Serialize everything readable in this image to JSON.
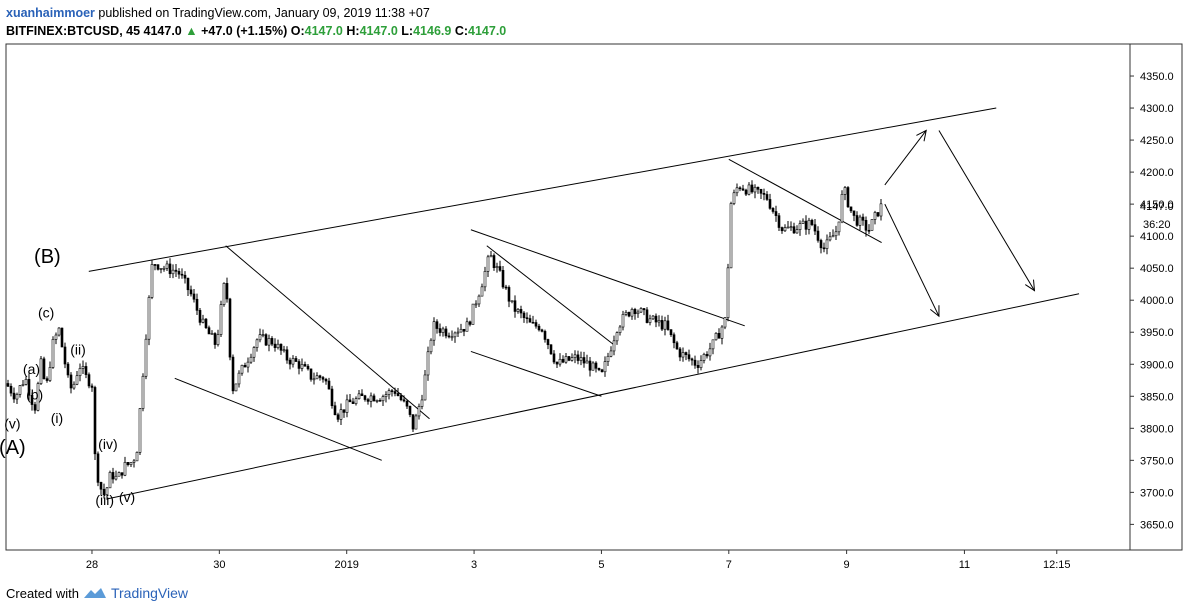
{
  "header": {
    "author": "xuanhaimmoer",
    "published": " published on TradingView.com, January 09, 2019 11:38 +07",
    "symbol": "BITFINEX:BTCUSD, 45 ",
    "price": "4147.0",
    "change": "+47.0 (+1.15%)",
    "o_label": "O:",
    "o_value": "4147.0",
    "h_label": "H:",
    "h_value": "4147.0",
    "l_label": "L:",
    "l_value": "4146.9",
    "c_label": "C:",
    "c_value": "4147.0",
    "up_arrow_icon": "up-triangle"
  },
  "footer": {
    "created_with": "Created with",
    "brand": "TradingView",
    "logo_icon": "tradingview-logo"
  },
  "colors": {
    "candle": "#000000",
    "accent_green": "#2e9f3a",
    "brand_blue": "#2a62b8",
    "axis": "#555555"
  },
  "chart_data": {
    "type": "candlestick",
    "symbol": "BITFINEX:BTCUSD",
    "interval": "45",
    "ylim": [
      3610,
      4400
    ],
    "y_ticks": [
      3650,
      3700,
      3750,
      3800,
      3850,
      3900,
      3950,
      4000,
      4050,
      4100,
      4150,
      4200,
      4250,
      4300,
      4350
    ],
    "y_tick_labels": [
      "3650.0",
      "3700.0",
      "3750.0",
      "3800.0",
      "3850.0",
      "3900.0",
      "3950.0",
      "4000.0",
      "4050.0",
      "4100.0",
      "4150.0",
      "4200.0",
      "4250.0",
      "4300.0",
      "4350.0"
    ],
    "x_ticks": [
      {
        "t": 0,
        "label": "28"
      },
      {
        "t": 2,
        "label": "30"
      },
      {
        "t": 4,
        "label": "2019"
      },
      {
        "t": 6,
        "label": "3"
      },
      {
        "t": 8,
        "label": "5"
      },
      {
        "t": 10,
        "label": "7"
      },
      {
        "t": 11.85,
        "label": "9"
      },
      {
        "t": 13.7,
        "label": "11"
      },
      {
        "t": 15.15,
        "label": "12:15"
      }
    ],
    "xlim": [
      -1.35,
      16.3
    ],
    "last_price_label": "4147.0",
    "countdown_label": "36:20",
    "price_path": [
      [
        -1.35,
        3870
      ],
      [
        -1.2,
        3850
      ],
      [
        -1.05,
        3880
      ],
      [
        -0.9,
        3830
      ],
      [
        -0.8,
        3900
      ],
      [
        -0.72,
        3860
      ],
      [
        -0.62,
        3930
      ],
      [
        -0.52,
        3955
      ],
      [
        -0.42,
        3900
      ],
      [
        -0.35,
        3860
      ],
      [
        -0.28,
        3870
      ],
      [
        -0.2,
        3900
      ],
      [
        -0.1,
        3880
      ],
      [
        0.0,
        3870
      ],
      [
        0.05,
        3750
      ],
      [
        0.12,
        3710
      ],
      [
        0.2,
        3695
      ],
      [
        0.3,
        3730
      ],
      [
        0.4,
        3720
      ],
      [
        0.5,
        3740
      ],
      [
        0.6,
        3745
      ],
      [
        0.7,
        3760
      ],
      [
        0.85,
        3950
      ],
      [
        0.95,
        4060
      ],
      [
        1.15,
        4050
      ],
      [
        1.35,
        4045
      ],
      [
        1.55,
        4010
      ],
      [
        1.75,
        3960
      ],
      [
        1.95,
        3930
      ],
      [
        2.1,
        4040
      ],
      [
        2.2,
        3860
      ],
      [
        2.4,
        3900
      ],
      [
        2.6,
        3940
      ],
      [
        2.85,
        3935
      ],
      [
        3.05,
        3910
      ],
      [
        3.25,
        3900
      ],
      [
        3.45,
        3880
      ],
      [
        3.65,
        3880
      ],
      [
        3.85,
        3820
      ],
      [
        4.05,
        3840
      ],
      [
        4.3,
        3850
      ],
      [
        4.55,
        3850
      ],
      [
        4.75,
        3860
      ],
      [
        4.95,
        3830
      ],
      [
        5.05,
        3800
      ],
      [
        5.2,
        3860
      ],
      [
        5.35,
        3960
      ],
      [
        5.6,
        3950
      ],
      [
        5.9,
        3960
      ],
      [
        6.1,
        4020
      ],
      [
        6.25,
        4070
      ],
      [
        6.4,
        4040
      ],
      [
        6.6,
        3990
      ],
      [
        6.9,
        3960
      ],
      [
        7.05,
        3960
      ],
      [
        7.3,
        3900
      ],
      [
        7.6,
        3910
      ],
      [
        7.8,
        3900
      ],
      [
        8.0,
        3880
      ],
      [
        8.25,
        3960
      ],
      [
        8.5,
        3990
      ],
      [
        8.75,
        3970
      ],
      [
        9.0,
        3960
      ],
      [
        9.2,
        3920
      ],
      [
        9.5,
        3900
      ],
      [
        9.75,
        3930
      ],
      [
        9.95,
        3970
      ],
      [
        10.03,
        4150
      ],
      [
        10.15,
        4180
      ],
      [
        10.35,
        4170
      ],
      [
        10.6,
        4160
      ],
      [
        10.85,
        4110
      ],
      [
        11.1,
        4115
      ],
      [
        11.3,
        4120
      ],
      [
        11.5,
        4080
      ],
      [
        11.7,
        4110
      ],
      [
        11.8,
        4175
      ],
      [
        11.95,
        4130
      ],
      [
        12.2,
        4110
      ],
      [
        12.35,
        4140
      ],
      [
        12.4,
        4147
      ]
    ],
    "annotation_labels": [
      {
        "text": "(a)",
        "t": -0.95,
        "y": 3885
      },
      {
        "text": "(b)",
        "t": -0.9,
        "y": 3845
      },
      {
        "text": "(c)",
        "t": -0.72,
        "y": 3973
      },
      {
        "text": "(ii)",
        "t": -0.22,
        "y": 3915
      },
      {
        "text": "(i)",
        "t": -0.55,
        "y": 3808
      },
      {
        "text": "(v)",
        "t": -1.25,
        "y": 3800
      },
      {
        "text": "(A)",
        "t": -1.25,
        "y": 3760
      },
      {
        "text": "(iv)",
        "t": 0.25,
        "y": 3768
      },
      {
        "text": "(iii)",
        "t": 0.2,
        "y": 3680
      },
      {
        "text": "(v)",
        "t": 0.55,
        "y": 3685
      },
      {
        "text": "(B)",
        "t": -0.7,
        "y": 4058
      }
    ],
    "trend_lines": [
      {
        "name": "channel-upper",
        "from": [
          -0.05,
          4045
        ],
        "to": [
          14.2,
          4300
        ]
      },
      {
        "name": "channel-lower",
        "from": [
          0.25,
          3690
        ],
        "to": [
          15.5,
          4010
        ]
      },
      {
        "name": "wedge1-upper",
        "from": [
          2.1,
          4085
        ],
        "to": [
          5.3,
          3815
        ]
      },
      {
        "name": "wedge1-lower",
        "from": [
          1.3,
          3878
        ],
        "to": [
          4.55,
          3750
        ]
      },
      {
        "name": "wedge2-upper-a",
        "from": [
          5.95,
          4110
        ],
        "to": [
          10.25,
          3960
        ]
      },
      {
        "name": "wedge2-upper-b",
        "from": [
          6.2,
          4085
        ],
        "to": [
          8.2,
          3930
        ]
      },
      {
        "name": "wedge2-lower",
        "from": [
          5.95,
          3920
        ],
        "to": [
          8.0,
          3850
        ]
      },
      {
        "name": "wedge3-upper",
        "from": [
          10.0,
          4220
        ],
        "to": [
          12.4,
          4090
        ]
      }
    ],
    "arrows": [
      {
        "name": "projection-up",
        "from": [
          12.45,
          4180
        ],
        "to": [
          13.1,
          4265
        ]
      },
      {
        "name": "projection-down-long",
        "from": [
          13.3,
          4265
        ],
        "to": [
          14.8,
          4015
        ]
      },
      {
        "name": "projection-down",
        "from": [
          12.45,
          4150
        ],
        "to": [
          13.3,
          3975
        ]
      }
    ]
  }
}
